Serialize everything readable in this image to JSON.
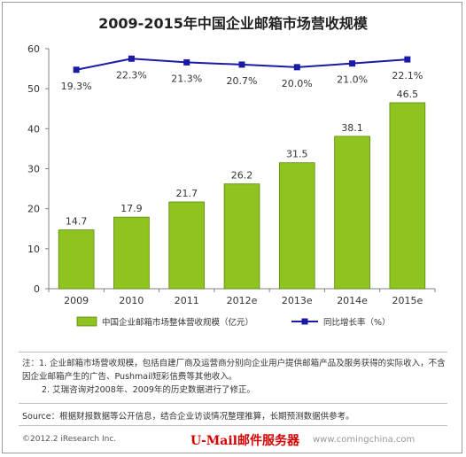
{
  "title": "2009-2015年中国企业邮箱市场营收规模",
  "chart_data": {
    "type": "bar",
    "categories": [
      "2009",
      "2010",
      "2011",
      "2012e",
      "2013e",
      "2014e",
      "2015e"
    ],
    "series": [
      {
        "name": "中国企业邮箱市场整体营收规模（亿元）",
        "type": "bar",
        "values": [
          14.7,
          17.9,
          21.7,
          26.2,
          31.5,
          38.1,
          46.5
        ],
        "labels": [
          "14.7",
          "17.9",
          "21.7",
          "26.2",
          "31.5",
          "38.1",
          "46.5"
        ]
      },
      {
        "name": "同比增长率（%）",
        "type": "line",
        "values": [
          19.3,
          22.3,
          21.3,
          20.7,
          20.0,
          21.0,
          22.1
        ],
        "labels": [
          "19.3%",
          "22.3%",
          "21.3%",
          "20.7%",
          "20.0%",
          "21.0%",
          "22.1%"
        ]
      }
    ],
    "ylim": [
      0,
      60
    ],
    "yticks": [
      0,
      10,
      20,
      30,
      40,
      50,
      60
    ],
    "growth_range": [
      -40,
      25
    ],
    "colors": {
      "bar": "#8fc31f",
      "bar_edge": "#5a8a10",
      "line": "#1a1aa6"
    },
    "legend_position": "bottom"
  },
  "notes": {
    "line1": "注：1. 企业邮箱市场营收规模，包括自建厂商及运营商分别向企业用户提供邮箱产品及服务获得的实际收入，不含因企业邮箱产生的广告、Pushmail短彩信费等其他收入。",
    "line2": "2. 艾瑞咨询对2008年、2009年的历史数据进行了修正。"
  },
  "source": "Source：根据财报数据等公开信息，结合企业访谈情况整理推算，长期预测数据供参考。",
  "copyright": "©2012.2 iResearch Inc.",
  "watermark": "U-Mail邮件服务器",
  "watermark_url": "www.comingchina.com"
}
